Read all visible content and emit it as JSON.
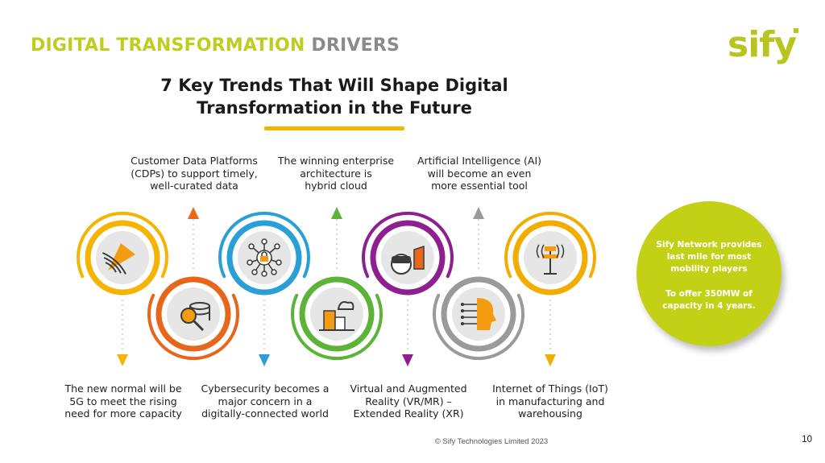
{
  "slide": {
    "title_part1": "DIGITAL TRANSFORMATION",
    "title_part2": "DRIVERS",
    "logo_text": "sify",
    "heading_line1": "7 Key Trends That Will Shape Digital",
    "heading_line2": "Transformation in the Future",
    "trends_top": [
      {
        "line1": "Customer Data Platforms",
        "line2": "(CDPs) to support timely,",
        "line3": "well-curated data"
      },
      {
        "line1": "The winning enterprise",
        "line2": "architecture is",
        "line3": "hybrid cloud"
      },
      {
        "line1": "Artificial Intelligence (AI)",
        "line2": "will become an even",
        "line3": "more essential tool"
      }
    ],
    "trends_bottom": [
      {
        "line1": "The new normal will be",
        "line2": "5G to meet the rising",
        "line3": "need for more capacity"
      },
      {
        "line1": "Cybersecurity becomes a",
        "line2": "major concern in a",
        "line3": "digitally-connected world"
      },
      {
        "line1": "Virtual and Augmented",
        "line2": "Reality (VR/MR) –",
        "line3": "Extended Reality (XR)"
      },
      {
        "line1": "Internet of Things (IoT)",
        "line2": "in manufacturing and",
        "line3": "warehousing"
      }
    ],
    "sify_circle": {
      "line1": "Sify Network provides",
      "line2": "last mile for most",
      "line3": "mobility players",
      "line4": "To offer 350MW of",
      "line5": "capacity in 4 years."
    },
    "footer": {
      "copyright": "© Sify Technologies Limited 2023",
      "page_number": "10"
    },
    "colors": {
      "brand_green": "#bfcd1f",
      "title_gray": "#8a8a8a",
      "yellow": "#f5b400",
      "orange": "#e8661c",
      "blue": "#2a9fd6",
      "green": "#5cb338",
      "purple": "#8e1f8e",
      "gray": "#9a9a9a",
      "gold": "#f2ad00"
    },
    "icons": [
      "signal-5g-icon",
      "database-search-icon",
      "network-lock-icon",
      "cloud-building-icon",
      "vr-headset-icon",
      "ai-head-icon",
      "iot-antenna-icon"
    ]
  }
}
